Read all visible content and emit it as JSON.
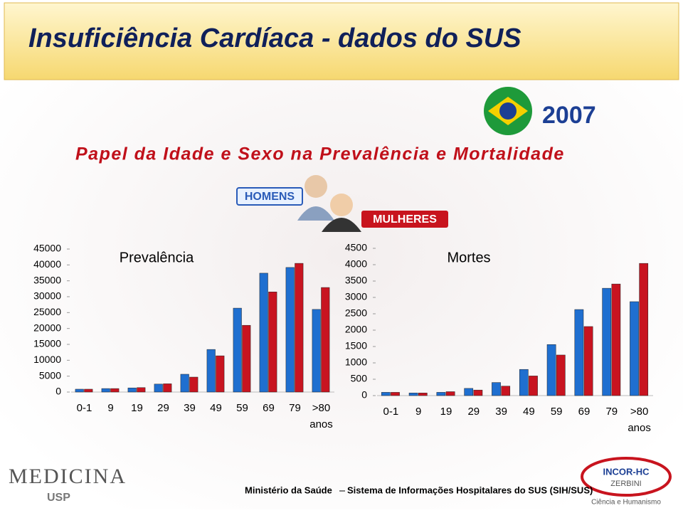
{
  "title": "Insuficiência Cardíaca - dados do SUS",
  "year": "2007",
  "subtitle": "Papel da Idade e Sexo na Prevalência e Mortalidade",
  "footer": {
    "source": "Ministério da Saúde",
    "system": "Sistema de Informações Hospitalares do SUS (SIH/SUS)"
  },
  "logos": {
    "left": "MEDICINA",
    "left_sub": "USP",
    "right": "INCOR-HC",
    "right_sub": "ZERBINI",
    "right_motto": "Ciência e Humanismo"
  },
  "chart_data": [
    {
      "type": "bar",
      "title": "Prevalência",
      "x_label": "anos",
      "categories": [
        "0-1",
        "9",
        "19",
        "29",
        "39",
        "49",
        "59",
        "69",
        "79",
        ">80"
      ],
      "series": [
        {
          "name": "HOMENS",
          "color": "#1f6fd0",
          "values": [
            900,
            1100,
            1300,
            2500,
            5600,
            13400,
            26400,
            37400,
            39200,
            26000
          ]
        },
        {
          "name": "MULHERES",
          "color": "#c81420",
          "values": [
            900,
            1100,
            1400,
            2600,
            4700,
            11400,
            21000,
            31500,
            40500,
            32900
          ]
        }
      ],
      "ylim": [
        0,
        45000
      ],
      "yticks": [
        0,
        5000,
        10000,
        15000,
        20000,
        25000,
        30000,
        35000,
        40000,
        45000
      ]
    },
    {
      "type": "bar",
      "title": "Mortes",
      "x_label": "anos",
      "categories": [
        "0-1",
        "9",
        "19",
        "29",
        "39",
        "49",
        "59",
        "69",
        "79",
        ">80"
      ],
      "series": [
        {
          "color": "#1f6fd0",
          "values": [
            100,
            80,
            100,
            220,
            400,
            800,
            1560,
            2630,
            3280,
            2870
          ]
        },
        {
          "color": "#c81420",
          "values": [
            100,
            80,
            120,
            170,
            290,
            600,
            1240,
            2110,
            3410,
            4040
          ]
        }
      ],
      "ylim": [
        0,
        4500
      ],
      "yticks": [
        0,
        500,
        1000,
        1500,
        2000,
        2500,
        3000,
        3500,
        4000,
        4500
      ]
    }
  ]
}
